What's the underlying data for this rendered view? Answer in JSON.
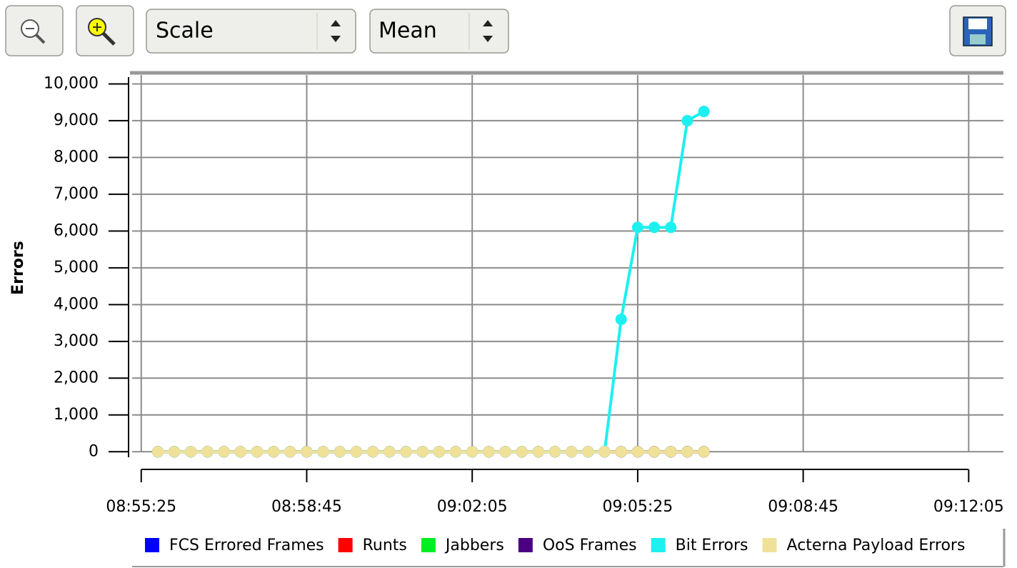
{
  "toolbar": {
    "dropdowns": [
      "Scale",
      "Mean"
    ]
  },
  "chart_data": {
    "type": "line",
    "y_label": "Errors",
    "x": [
      32145,
      32165,
      32185,
      32205,
      32225,
      32245,
      32265,
      32285,
      32305,
      32325,
      32345,
      32365,
      32385,
      32405,
      32425,
      32445,
      32465,
      32485,
      32505,
      32525,
      32545,
      32565,
      32585,
      32605,
      32625,
      32645,
      32665,
      32685,
      32705,
      32725,
      32745,
      32765,
      32785,
      32805
    ],
    "series": [
      {
        "name": "FCS Errored Frames",
        "color": "#0000ff",
        "values": [
          0,
          0,
          0,
          0,
          0,
          0,
          0,
          0,
          0,
          0,
          0,
          0,
          0,
          0,
          0,
          0,
          0,
          0,
          0,
          0,
          0,
          0,
          0,
          0,
          0,
          0,
          0,
          0,
          0,
          0,
          0,
          0,
          0,
          0
        ]
      },
      {
        "name": "Runts",
        "color": "#ff0000",
        "values": [
          0,
          0,
          0,
          0,
          0,
          0,
          0,
          0,
          0,
          0,
          0,
          0,
          0,
          0,
          0,
          0,
          0,
          0,
          0,
          0,
          0,
          0,
          0,
          0,
          0,
          0,
          0,
          0,
          0,
          0,
          0,
          0,
          0,
          0
        ]
      },
      {
        "name": "Jabbers",
        "color": "#00ee22",
        "values": [
          0,
          0,
          0,
          0,
          0,
          0,
          0,
          0,
          0,
          0,
          0,
          0,
          0,
          0,
          0,
          0,
          0,
          0,
          0,
          0,
          0,
          0,
          0,
          0,
          0,
          0,
          0,
          0,
          0,
          0,
          0,
          0,
          0,
          0
        ]
      },
      {
        "name": "OoS Frames",
        "color": "#4b0082",
        "values": [
          0,
          0,
          0,
          0,
          0,
          0,
          0,
          0,
          0,
          0,
          0,
          0,
          0,
          0,
          0,
          0,
          0,
          0,
          0,
          0,
          0,
          0,
          0,
          0,
          0,
          0,
          0,
          0,
          0,
          0,
          0,
          0,
          0,
          0
        ]
      },
      {
        "name": "Bit Errors",
        "color": "#1ef0f0",
        "values": [
          0,
          0,
          0,
          0,
          0,
          0,
          0,
          0,
          0,
          0,
          0,
          0,
          0,
          0,
          0,
          0,
          0,
          0,
          0,
          0,
          0,
          0,
          0,
          0,
          0,
          0,
          0,
          0,
          3600,
          6100,
          6100,
          6100,
          9000,
          9250
        ]
      },
      {
        "name": "Acterna Payload Errors",
        "color": "#f0e199",
        "values": [
          0,
          0,
          0,
          0,
          0,
          0,
          0,
          0,
          0,
          0,
          0,
          0,
          0,
          0,
          0,
          0,
          0,
          0,
          0,
          0,
          0,
          0,
          0,
          0,
          0,
          0,
          0,
          0,
          0,
          0,
          0,
          0,
          0,
          0
        ]
      }
    ],
    "xlim": [
      32114,
      33167
    ],
    "xticks": [
      {
        "value": 32125,
        "label": "08:55:25"
      },
      {
        "value": 32325,
        "label": "08:58:45"
      },
      {
        "value": 32525,
        "label": "09:02:05"
      },
      {
        "value": 32725,
        "label": "09:05:25"
      },
      {
        "value": 32925,
        "label": "09:08:45"
      },
      {
        "value": 33125,
        "label": "09:12:05"
      }
    ],
    "ylim": [
      -150,
      10300
    ],
    "yticks": [
      0,
      {
        "value": 1000,
        "label": "1,000"
      },
      {
        "value": 2000,
        "label": "2,000"
      },
      {
        "value": 3000,
        "label": "3,000"
      },
      {
        "value": 4000,
        "label": "4,000"
      },
      {
        "value": 5000,
        "label": "5,000"
      },
      {
        "value": 6000,
        "label": "6,000"
      },
      {
        "value": 7000,
        "label": "7,000"
      },
      {
        "value": 8000,
        "label": "8,000"
      },
      {
        "value": 9000,
        "label": "9,000"
      },
      {
        "value": 10000,
        "label": "10,000"
      }
    ],
    "grid": true
  }
}
